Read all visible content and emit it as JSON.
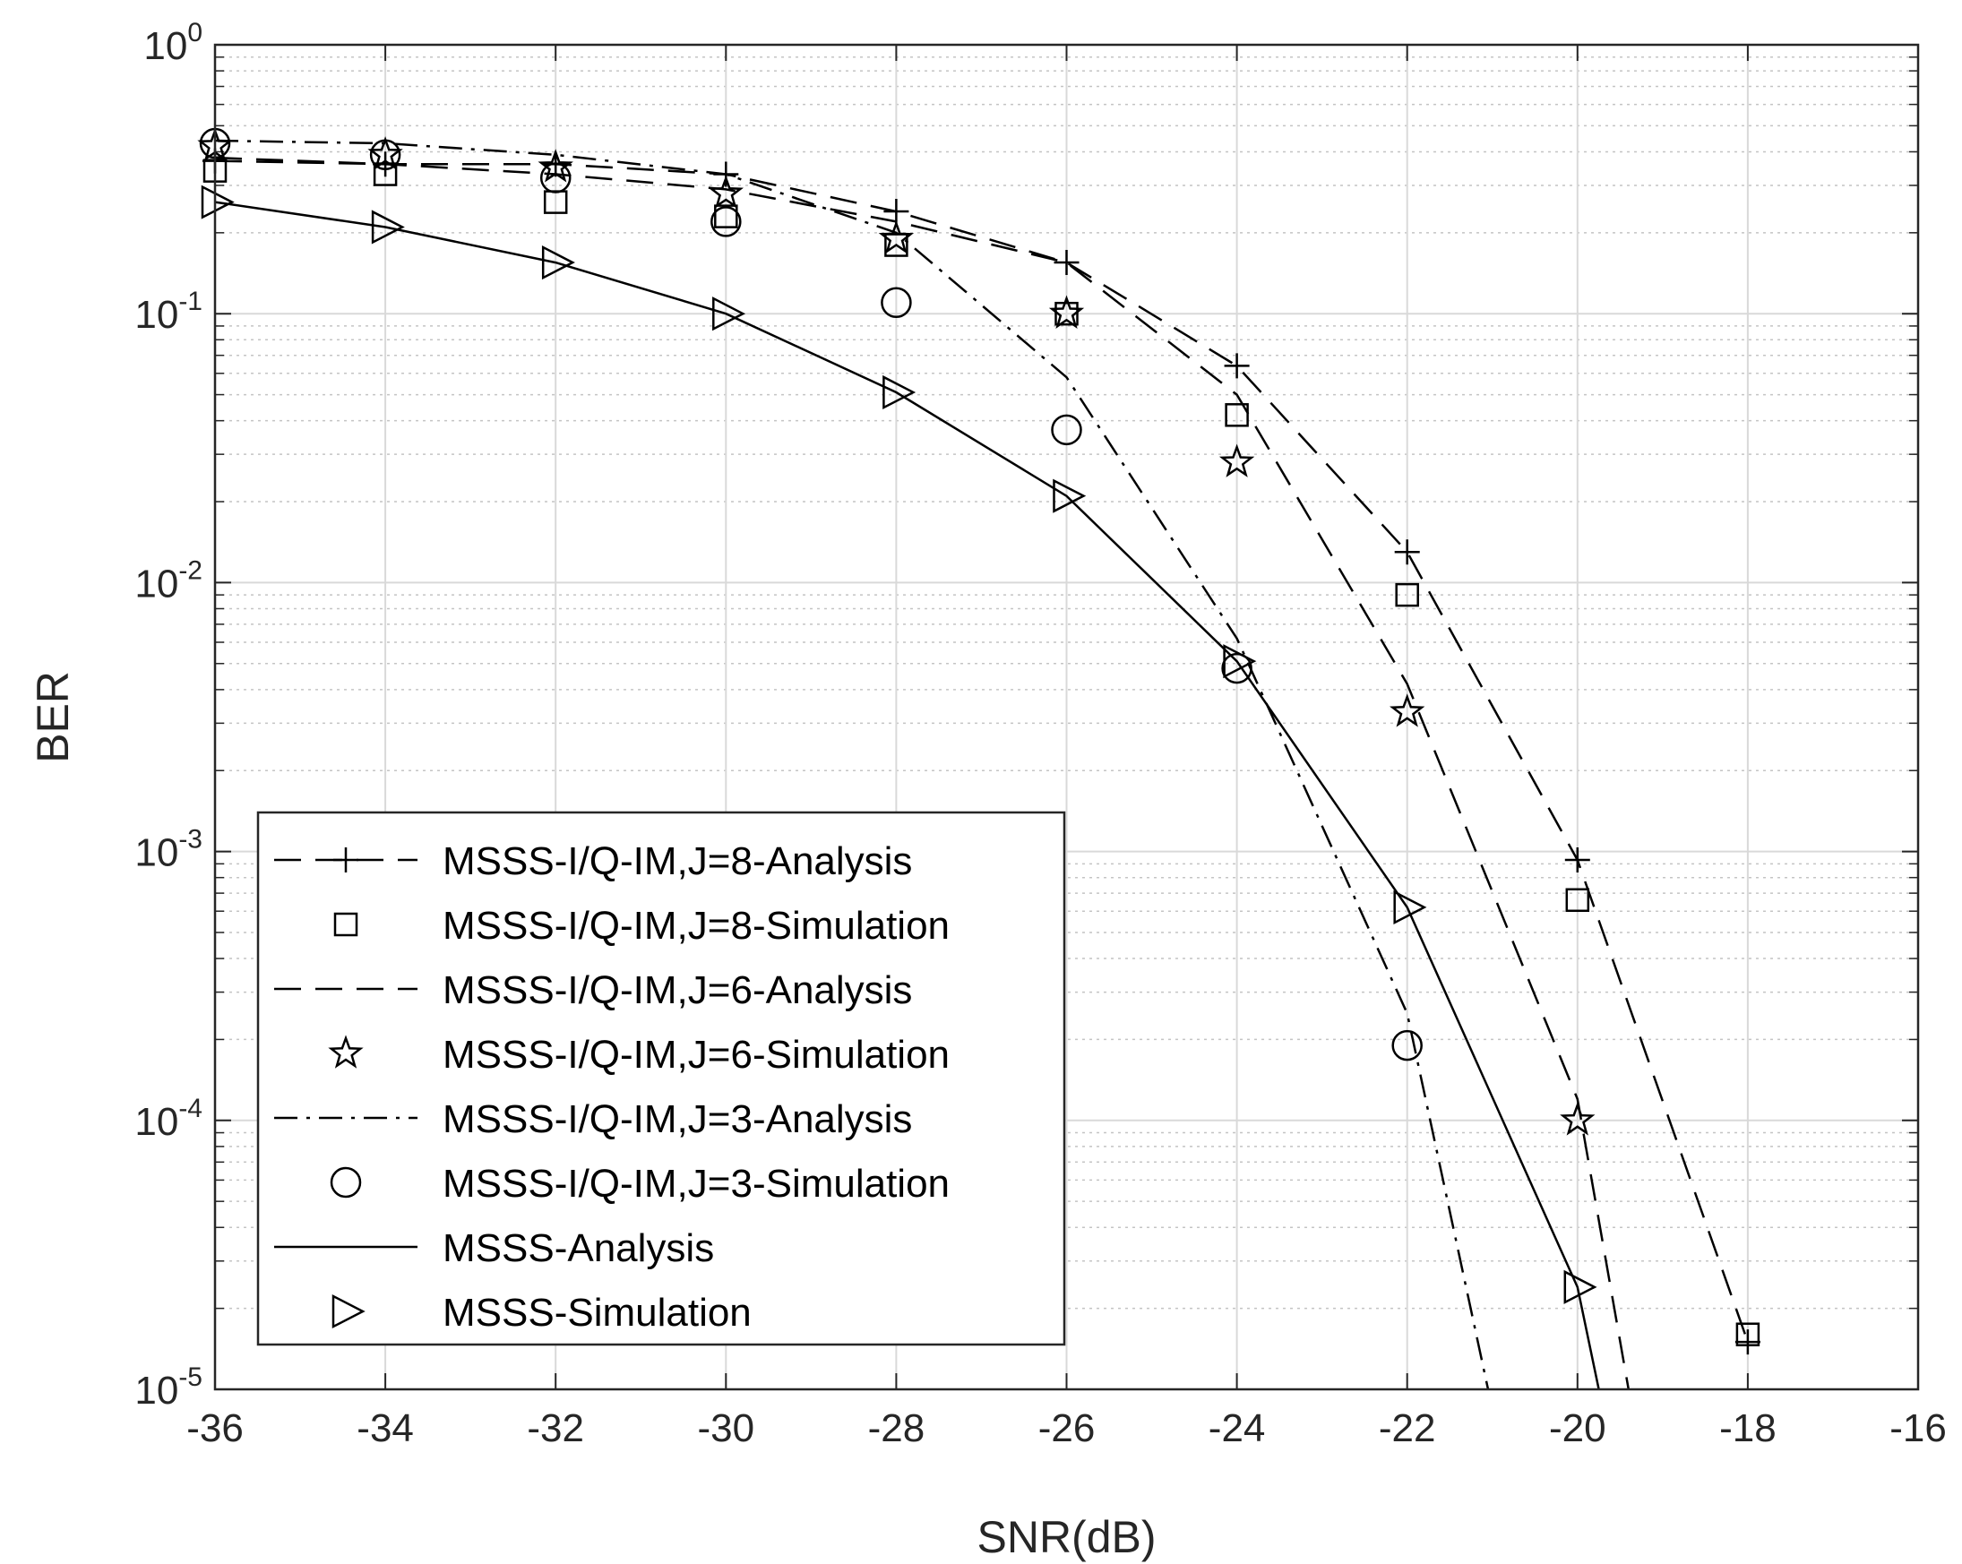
{
  "chart_data": {
    "type": "line",
    "title": "",
    "xlabel": "SNR(dB)",
    "ylabel": "BER",
    "xlim": [
      -36,
      -16
    ],
    "ylim": [
      1e-05,
      1
    ],
    "yscale": "log",
    "grid": true,
    "minor_grid": true,
    "legend_position": "bottom-left",
    "x_ticks": [
      -36,
      -34,
      -32,
      -30,
      -28,
      -26,
      -24,
      -22,
      -20,
      -18,
      -16
    ],
    "x_tick_labels": [
      "-36",
      "-34",
      "-32",
      "-30",
      "-28",
      "-26",
      "-24",
      "-22",
      "-20",
      "-18",
      "-16"
    ],
    "y_ticks": [
      {
        "value": 1e-05,
        "base": "10",
        "exp": "-5"
      },
      {
        "value": 0.0001,
        "base": "10",
        "exp": "-4"
      },
      {
        "value": 0.001,
        "base": "10",
        "exp": "-3"
      },
      {
        "value": 0.01,
        "base": "10",
        "exp": "-2"
      },
      {
        "value": 0.1,
        "base": "10",
        "exp": "-1"
      },
      {
        "value": 1,
        "base": "10",
        "exp": "0"
      }
    ],
    "series": [
      {
        "name": "MSSS-I/Q-IM,J=8-Analysis",
        "line": "dash",
        "marker": "plus",
        "x": [
          -36,
          -34,
          -32,
          -30,
          -28,
          -26,
          -24,
          -22,
          -20,
          -18
        ],
        "values": [
          0.37,
          0.36,
          0.36,
          0.33,
          0.24,
          0.155,
          0.064,
          0.013,
          0.00093,
          1.5e-05
        ]
      },
      {
        "name": "MSSS-I/Q-IM,J=8-Simulation",
        "line": "none",
        "marker": "square",
        "x": [
          -36,
          -34,
          -32,
          -30,
          -28,
          -26,
          -24,
          -22,
          -20,
          -18
        ],
        "values": [
          0.34,
          0.33,
          0.26,
          0.23,
          0.18,
          0.1,
          0.042,
          0.009,
          0.00066,
          1.6e-05
        ]
      },
      {
        "name": "MSSS-I/Q-IM,J=6-Analysis",
        "line": "dash",
        "marker": "none",
        "x": [
          -36,
          -34,
          -32,
          -30,
          -28,
          -26,
          -24,
          -22,
          -20,
          -19.4
        ],
        "values": [
          0.38,
          0.36,
          0.33,
          0.29,
          0.22,
          0.155,
          0.05,
          0.0042,
          0.00012,
          1e-05
        ]
      },
      {
        "name": "MSSS-I/Q-IM,J=6-Simulation",
        "line": "none",
        "marker": "star",
        "x": [
          -36,
          -34,
          -32,
          -30,
          -28,
          -26,
          -24,
          -22,
          -20
        ],
        "values": [
          0.42,
          0.39,
          0.35,
          0.28,
          0.19,
          0.1,
          0.028,
          0.0033,
          0.0001
        ]
      },
      {
        "name": "MSSS-I/Q-IM,J=3-Analysis",
        "line": "dashdot",
        "marker": "none",
        "x": [
          -36,
          -34,
          -32,
          -30,
          -28,
          -26,
          -24,
          -22,
          -21.05
        ],
        "values": [
          0.44,
          0.43,
          0.39,
          0.33,
          0.2,
          0.058,
          0.0062,
          0.00025,
          1e-05
        ]
      },
      {
        "name": "MSSS-I/Q-IM,J=3-Simulation",
        "line": "none",
        "marker": "circle",
        "x": [
          -36,
          -34,
          -32,
          -30,
          -28,
          -26,
          -24,
          -22
        ],
        "values": [
          0.43,
          0.39,
          0.32,
          0.22,
          0.11,
          0.037,
          0.0048,
          0.00019
        ]
      },
      {
        "name": "MSSS-Analysis",
        "line": "solid",
        "marker": "none",
        "x": [
          -36,
          -34,
          -32,
          -30,
          -28,
          -26,
          -24,
          -22,
          -20,
          -19.75
        ],
        "values": [
          0.26,
          0.21,
          0.155,
          0.1,
          0.051,
          0.021,
          0.0051,
          0.00062,
          2.4e-05,
          1e-05
        ]
      },
      {
        "name": "MSSS-Simulation",
        "line": "none",
        "marker": "triangle-right",
        "x": [
          -36,
          -34,
          -32,
          -30,
          -28,
          -26,
          -24,
          -22,
          -20
        ],
        "values": [
          0.26,
          0.21,
          0.155,
          0.1,
          0.051,
          0.021,
          0.0051,
          0.00062,
          2.4e-05
        ]
      }
    ],
    "legend": [
      {
        "label": "MSSS-I/Q-IM,J=8-Analysis",
        "line": "dash",
        "marker": "plus"
      },
      {
        "label": "MSSS-I/Q-IM,J=8-Simulation",
        "line": "none",
        "marker": "square"
      },
      {
        "label": "MSSS-I/Q-IM,J=6-Analysis",
        "line": "dash",
        "marker": "none"
      },
      {
        "label": "MSSS-I/Q-IM,J=6-Simulation",
        "line": "none",
        "marker": "star"
      },
      {
        "label": "MSSS-I/Q-IM,J=3-Analysis",
        "line": "dashdot",
        "marker": "none"
      },
      {
        "label": "MSSS-I/Q-IM,J=3-Simulation",
        "line": "none",
        "marker": "circle"
      },
      {
        "label": "MSSS-Analysis",
        "line": "solid",
        "marker": "none"
      },
      {
        "label": "MSSS-Simulation",
        "line": "none",
        "marker": "triangle-right"
      }
    ]
  }
}
